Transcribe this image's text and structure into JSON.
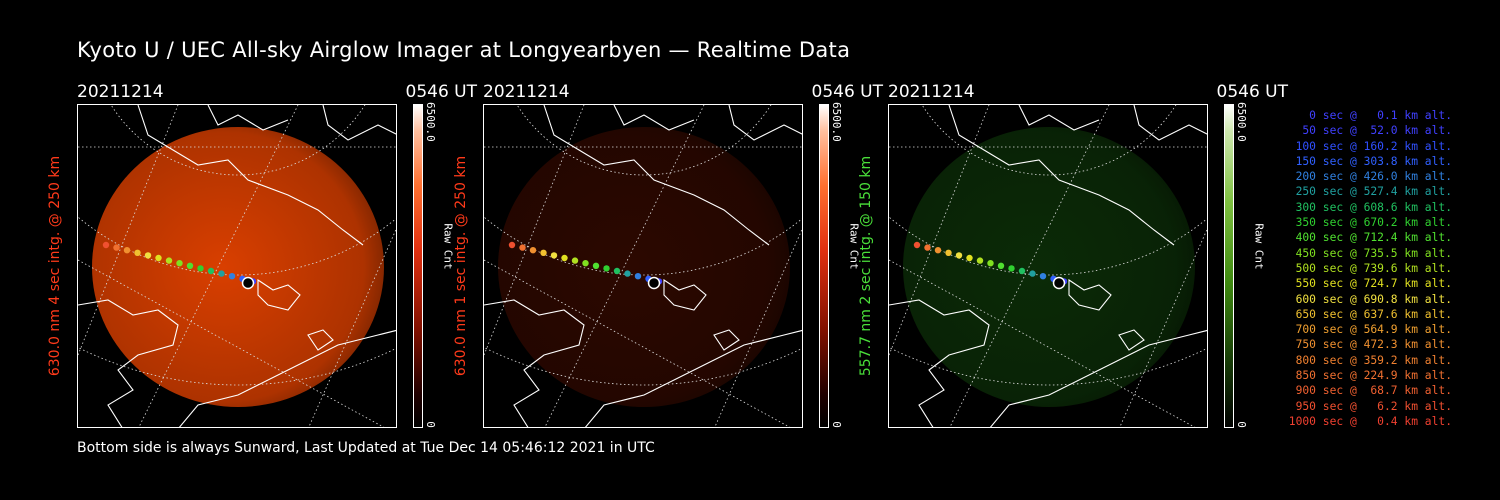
{
  "title": "Kyoto U / UEC All-sky Airglow Imager at Longyearbyen — Realtime Data",
  "footer": "Bottom side is always Sunward, Last Updated at Tue Dec 14 05:46:12 2021 in UTC",
  "panels": [
    {
      "date": "20211214",
      "time": "0546 UT",
      "label": "630.0 nm 4 sec intg. @ 250 km",
      "cbar_max": "6500.0",
      "cbar_unit": "Raw Cnt",
      "cbar_min": "0",
      "label_color": "#ff3a1a",
      "glow": "#ff4a00",
      "intensity": 0.85
    },
    {
      "date": "20211214",
      "time": "0546 UT",
      "label": "630.0 nm 1 sec intg. @ 250 km",
      "cbar_max": "6500.0",
      "cbar_unit": "Raw Cnt",
      "cbar_min": "0",
      "label_color": "#ff3a1a",
      "glow": "#b02000",
      "intensity": 0.25
    },
    {
      "date": "20211214",
      "time": "0546 UT",
      "label": "557.7 nm 2 sec intg. @ 150 km",
      "cbar_max": "6500.0",
      "cbar_unit": "Raw Cnt",
      "cbar_min": "0",
      "label_color": "#4adf3a",
      "glow": "#1f7a14",
      "intensity": 0.35
    }
  ],
  "legend": [
    {
      "text": "   0 sec @   0.1 km alt.",
      "color": "#4040ff"
    },
    {
      "text": "  50 sec @  52.0 km alt.",
      "color": "#4040ff"
    },
    {
      "text": " 100 sec @ 160.2 km alt.",
      "color": "#3050ff"
    },
    {
      "text": " 150 sec @ 303.8 km alt.",
      "color": "#3060ff"
    },
    {
      "text": " 200 sec @ 426.0 km alt.",
      "color": "#3080e0"
    },
    {
      "text": " 250 sec @ 527.4 km alt.",
      "color": "#20a0a0"
    },
    {
      "text": " 300 sec @ 608.6 km alt.",
      "color": "#20c060"
    },
    {
      "text": " 350 sec @ 670.2 km alt.",
      "color": "#30d030"
    },
    {
      "text": " 400 sec @ 712.4 km alt.",
      "color": "#50e030"
    },
    {
      "text": " 450 sec @ 735.5 km alt.",
      "color": "#80e020"
    },
    {
      "text": " 500 sec @ 739.6 km alt.",
      "color": "#b0e020"
    },
    {
      "text": " 550 sec @ 724.7 km alt.",
      "color": "#e0e020"
    },
    {
      "text": " 600 sec @ 690.8 km alt.",
      "color": "#f0e040"
    },
    {
      "text": " 650 sec @ 637.6 km alt.",
      "color": "#f0c030"
    },
    {
      "text": " 700 sec @ 564.9 km alt.",
      "color": "#f0a030"
    },
    {
      "text": " 750 sec @ 472.3 km alt.",
      "color": "#f09030"
    },
    {
      "text": " 800 sec @ 359.2 km alt.",
      "color": "#f08030"
    },
    {
      "text": " 850 sec @ 224.9 km alt.",
      "color": "#f07030"
    },
    {
      "text": " 900 sec @  68.7 km alt.",
      "color": "#f06030"
    },
    {
      "text": " 950 sec @   6.2 km alt.",
      "color": "#f05030"
    },
    {
      "text": "1000 sec @   0.4 km alt.",
      "color": "#f04030"
    }
  ]
}
